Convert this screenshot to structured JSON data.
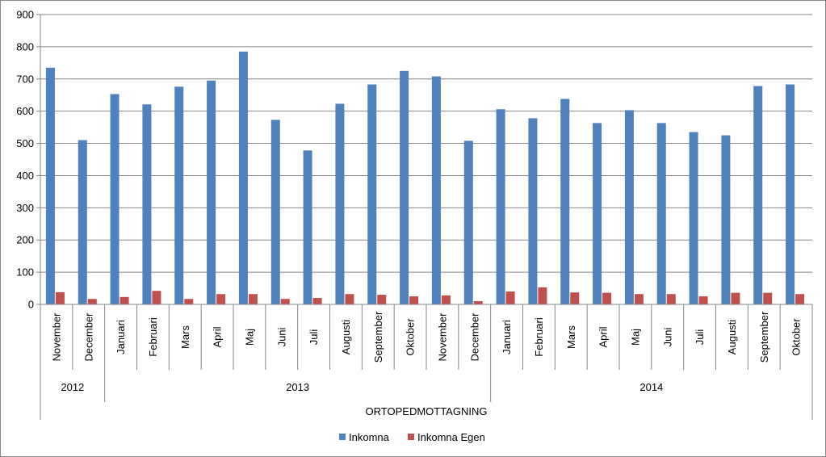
{
  "chart_data": {
    "type": "bar",
    "title": "",
    "xlabel": "ORTOPEDMOTTAGNING",
    "ylabel": "",
    "ylim": [
      0,
      900
    ],
    "yticks": [
      0,
      100,
      200,
      300,
      400,
      500,
      600,
      700,
      800,
      900
    ],
    "grid": "horizontal",
    "legend_position": "bottom",
    "categories": [
      "November",
      "December",
      "Januari",
      "Februari",
      "Mars",
      "April",
      "Maj",
      "Juni",
      "Juli",
      "Augusti",
      "September",
      "Oktober",
      "November",
      "December",
      "Januari",
      "Februari",
      "Mars",
      "April",
      "Maj",
      "Juni",
      "Juli",
      "Augusti",
      "September",
      "Oktober"
    ],
    "years": [
      {
        "label": "2012",
        "count": 2
      },
      {
        "label": "2013",
        "count": 12
      },
      {
        "label": "2014",
        "count": 10
      }
    ],
    "series": [
      {
        "name": "Inkomna",
        "color": "#4F81BD",
        "values": [
          735,
          510,
          653,
          621,
          676,
          695,
          785,
          573,
          478,
          623,
          683,
          725,
          708,
          508,
          606,
          578,
          638,
          563,
          603,
          563,
          535,
          525,
          678,
          683
        ]
      },
      {
        "name": "Inkomna Egen",
        "color": "#C0504D",
        "values": [
          38,
          17,
          23,
          42,
          17,
          32,
          32,
          17,
          20,
          32,
          30,
          25,
          28,
          10,
          40,
          53,
          37,
          36,
          32,
          32,
          25,
          36,
          36,
          32
        ]
      }
    ]
  }
}
